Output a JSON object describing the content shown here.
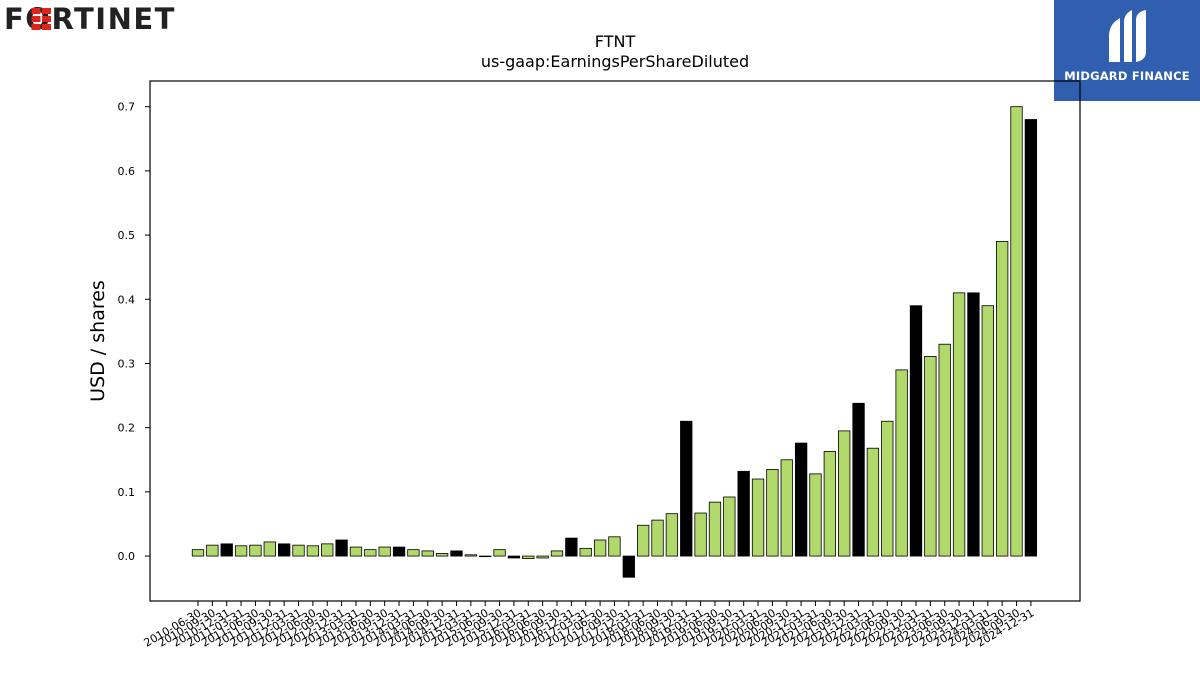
{
  "logos": {
    "left_text": "FORTINET",
    "right_text": "MIDGARD FINANCE",
    "right_bg": "#2f5fae"
  },
  "chart_data": {
    "type": "bar",
    "title": "FTNT",
    "subtitle": "us-gaap:EarningsPerShareDiluted",
    "xlabel": "",
    "ylabel": "USD / shares",
    "ylim": [
      -0.07,
      0.74
    ],
    "yticks": [
      0.0,
      0.1,
      0.2,
      0.3,
      0.4,
      0.5,
      0.6,
      0.7
    ],
    "colors": {
      "quarterly": "#b0d86a",
      "annual": "#000000",
      "edge": "#000000"
    },
    "grid": false,
    "legend": "none",
    "categories": [
      "2010-06-30",
      "2010-09-30",
      "2010-12-31",
      "2011-03-31",
      "2011-06-30",
      "2011-09-30",
      "2011-12-31",
      "2012-03-31",
      "2012-06-30",
      "2012-09-30",
      "2012-12-31",
      "2013-03-31",
      "2013-06-30",
      "2013-09-30",
      "2013-12-31",
      "2014-03-31",
      "2014-06-30",
      "2014-09-30",
      "2014-12-31",
      "2015-03-31",
      "2015-06-30",
      "2015-09-30",
      "2015-12-31",
      "2016-03-31",
      "2016-06-30",
      "2016-09-30",
      "2016-12-31",
      "2017-03-31",
      "2017-06-30",
      "2017-09-30",
      "2017-12-31",
      "2018-03-31",
      "2018-06-30",
      "2018-09-30",
      "2018-12-31",
      "2019-03-31",
      "2019-06-30",
      "2019-09-30",
      "2019-12-31",
      "2020-03-31",
      "2020-06-30",
      "2020-09-30",
      "2020-12-31",
      "2021-03-31",
      "2021-06-30",
      "2021-09-30",
      "2021-12-31",
      "2022-03-31",
      "2022-06-30",
      "2022-09-30",
      "2022-12-31",
      "2023-03-31",
      "2023-06-30",
      "2023-09-30",
      "2023-12-31",
      "2024-03-31",
      "2024-06-30",
      "2024-09-30",
      "2024-12-31"
    ],
    "tick_labels": [
      "2010-06-30",
      "2010-09-30",
      "2010-12-31",
      "2011-03-31",
      "2011-06-30",
      "2011-09-30",
      "2011-12-31",
      "2012-03-31",
      "2012-06-30",
      "2012-09-30",
      "2012-12-31",
      "2013-03-31",
      "2013-06-30",
      "2013-09-30",
      "2013-12-31",
      "2014-03-31",
      "2014-06-30",
      "2014-09-30",
      "2014-12-31",
      "2015-03-31",
      "2015-06-30",
      "2015-09-30",
      "2015-12-31",
      "2016-03-31",
      "2016-06-30",
      "2016-09-30",
      "2016-12-31",
      "2017-03-31",
      "2017-06-30",
      "2017-09-30",
      "2017-12-31",
      "2018-03-31",
      "2018-06-30",
      "2018-09-30",
      "2018-12-31",
      "2019-03-31",
      "2019-06-30",
      "2019-09-30",
      "2019-12-31",
      "2020-03-31",
      "2020-06-30",
      "2020-09-30",
      "2020-12-31",
      "2021-03-31",
      "2021-06-30",
      "2021-09-30",
      "2021-12-31",
      "2022-03-31",
      "2022-06-30",
      "2022-09-30",
      "2022-12-31",
      "2023-03-31",
      "2023-06-30",
      "2023-09-30",
      "2023-12-31",
      "2024-03-31",
      "2024-06-30",
      "2024-09-30",
      "2024-12-31"
    ],
    "values": [
      0.01,
      0.017,
      0.019,
      0.016,
      0.017,
      0.022,
      0.019,
      0.017,
      0.016,
      0.019,
      0.025,
      0.014,
      0.01,
      0.014,
      0.014,
      0.01,
      0.008,
      0.004,
      0.008,
      0.002,
      0.0,
      0.01,
      -0.003,
      -0.004,
      -0.003,
      0.008,
      0.028,
      0.012,
      0.025,
      0.03,
      -0.033,
      0.048,
      0.056,
      0.066,
      0.21,
      0.067,
      0.084,
      0.092,
      0.132,
      0.12,
      0.135,
      0.15,
      0.176,
      0.128,
      0.163,
      0.195,
      0.238,
      0.168,
      0.21,
      0.29,
      0.39,
      0.311,
      0.33,
      0.41,
      0.41,
      0.39,
      0.49,
      0.7,
      0.68
    ],
    "is_annual": [
      false,
      false,
      true,
      false,
      false,
      false,
      true,
      false,
      false,
      false,
      true,
      false,
      false,
      false,
      true,
      false,
      false,
      false,
      true,
      false,
      false,
      false,
      true,
      false,
      false,
      false,
      true,
      false,
      false,
      false,
      true,
      false,
      false,
      false,
      true,
      false,
      false,
      false,
      true,
      false,
      false,
      false,
      true,
      false,
      false,
      false,
      true,
      false,
      false,
      false,
      true,
      false,
      false,
      false,
      true,
      false,
      false,
      false,
      true
    ]
  }
}
